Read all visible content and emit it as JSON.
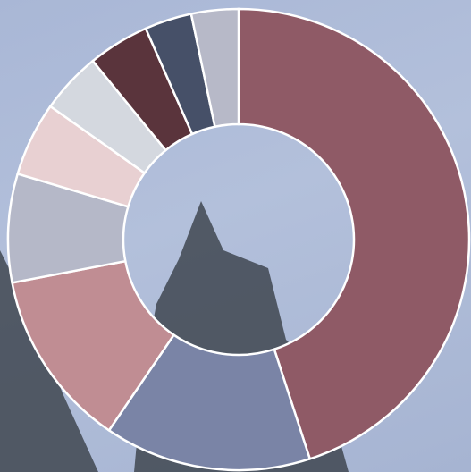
{
  "chart_data": {
    "type": "pie",
    "categories": [
      null,
      null,
      null,
      null,
      null,
      null,
      null,
      null,
      null
    ],
    "values": [
      45,
      14.5,
      12.5,
      7.6,
      5.2,
      4.3,
      4.3,
      3.3,
      3.3
    ],
    "colors": [
      "#8f5a66",
      "#7a84a6",
      "#c08d93",
      "#b5b8c8",
      "#e8d0d2",
      "#d4d8df",
      "#5a343c",
      "#465068",
      "#b7b9c8"
    ],
    "hole": 0.5
  }
}
